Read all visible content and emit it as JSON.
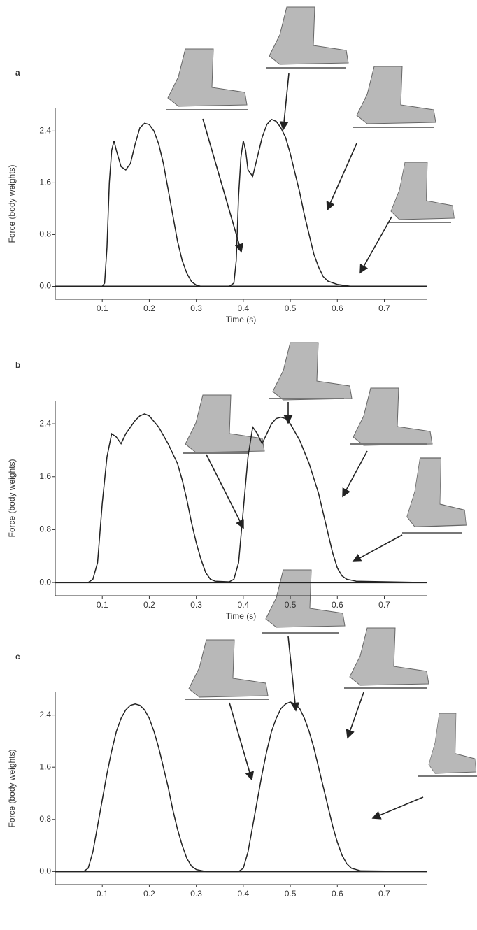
{
  "chart_data": [
    {
      "type": "line",
      "title": "a",
      "xlabel": "Time (s)",
      "ylabel": "Force (body weights)",
      "x": [
        0,
        0.1,
        0.105,
        0.11,
        0.115,
        0.12,
        0.125,
        0.13,
        0.14,
        0.15,
        0.16,
        0.17,
        0.18,
        0.19,
        0.2,
        0.21,
        0.22,
        0.23,
        0.24,
        0.25,
        0.26,
        0.27,
        0.28,
        0.29,
        0.3,
        0.31,
        0.37,
        0.38,
        0.385,
        0.39,
        0.395,
        0.4,
        0.405,
        0.41,
        0.42,
        0.43,
        0.44,
        0.45,
        0.46,
        0.47,
        0.48,
        0.49,
        0.5,
        0.51,
        0.52,
        0.53,
        0.54,
        0.55,
        0.56,
        0.57,
        0.58,
        0.6,
        0.63,
        0.79
      ],
      "series": [
        {
          "color": "#222222",
          "values": [
            0,
            0,
            0.05,
            0.6,
            1.6,
            2.1,
            2.25,
            2.1,
            1.85,
            1.8,
            1.9,
            2.2,
            2.45,
            2.52,
            2.5,
            2.4,
            2.2,
            1.9,
            1.5,
            1.1,
            0.7,
            0.4,
            0.2,
            0.07,
            0.02,
            0,
            0,
            0.05,
            0.4,
            1.4,
            2.0,
            2.25,
            2.1,
            1.8,
            1.7,
            2.0,
            2.3,
            2.5,
            2.58,
            2.55,
            2.45,
            2.3,
            2.05,
            1.75,
            1.45,
            1.1,
            0.8,
            0.5,
            0.3,
            0.15,
            0.08,
            0.03,
            0,
            0
          ]
        }
      ],
      "xlim": [
        0,
        0.79
      ],
      "ylim": [
        -0.2,
        2.75
      ],
      "xticks": [
        0.1,
        0.2,
        0.3,
        0.4,
        0.5,
        0.6,
        0.7
      ],
      "yticks": [
        {
          "value": 0,
          "label": "0.0"
        },
        0.8,
        1.6,
        2.4
      ]
    },
    {
      "type": "line",
      "title": "b",
      "xlabel": "Time (s)",
      "ylabel": "Force (body weights)",
      "x": [
        0,
        0.07,
        0.08,
        0.09,
        0.1,
        0.11,
        0.12,
        0.13,
        0.14,
        0.15,
        0.16,
        0.17,
        0.18,
        0.19,
        0.2,
        0.22,
        0.24,
        0.26,
        0.27,
        0.28,
        0.29,
        0.3,
        0.31,
        0.32,
        0.33,
        0.34,
        0.37,
        0.38,
        0.39,
        0.4,
        0.41,
        0.42,
        0.43,
        0.44,
        0.45,
        0.46,
        0.47,
        0.48,
        0.49,
        0.5,
        0.52,
        0.54,
        0.56,
        0.57,
        0.58,
        0.59,
        0.6,
        0.61,
        0.62,
        0.64,
        0.79
      ],
      "series": [
        {
          "color": "#222222",
          "values": [
            0,
            0,
            0.05,
            0.3,
            1.2,
            1.9,
            2.25,
            2.2,
            2.1,
            2.25,
            2.35,
            2.45,
            2.52,
            2.55,
            2.52,
            2.35,
            2.1,
            1.8,
            1.55,
            1.25,
            0.9,
            0.6,
            0.35,
            0.15,
            0.05,
            0.02,
            0.01,
            0.05,
            0.3,
            1.1,
            1.9,
            2.35,
            2.25,
            2.1,
            2.25,
            2.4,
            2.48,
            2.5,
            2.48,
            2.4,
            2.15,
            1.8,
            1.35,
            1.05,
            0.75,
            0.45,
            0.22,
            0.1,
            0.05,
            0.02,
            0
          ]
        }
      ],
      "xlim": [
        0,
        0.79
      ],
      "ylim": [
        -0.2,
        2.75
      ],
      "xticks": [
        0.1,
        0.2,
        0.3,
        0.4,
        0.5,
        0.6,
        0.7
      ],
      "yticks": [
        {
          "value": 0,
          "label": "0.0"
        },
        0.8,
        1.6,
        2.4
      ]
    },
    {
      "type": "line",
      "title": "c",
      "ylabel": "Force (body weights)",
      "x": [
        0,
        0.06,
        0.07,
        0.08,
        0.09,
        0.1,
        0.11,
        0.12,
        0.13,
        0.14,
        0.15,
        0.16,
        0.17,
        0.18,
        0.19,
        0.2,
        0.21,
        0.22,
        0.23,
        0.24,
        0.25,
        0.26,
        0.27,
        0.28,
        0.29,
        0.3,
        0.32,
        0.39,
        0.4,
        0.41,
        0.42,
        0.43,
        0.44,
        0.45,
        0.46,
        0.47,
        0.48,
        0.49,
        0.5,
        0.51,
        0.52,
        0.53,
        0.54,
        0.55,
        0.56,
        0.57,
        0.58,
        0.59,
        0.6,
        0.61,
        0.62,
        0.63,
        0.65,
        0.79
      ],
      "series": [
        {
          "color": "#222222",
          "values": [
            0,
            0,
            0.05,
            0.3,
            0.7,
            1.1,
            1.5,
            1.85,
            2.15,
            2.35,
            2.48,
            2.55,
            2.57,
            2.55,
            2.48,
            2.35,
            2.15,
            1.9,
            1.6,
            1.3,
            0.95,
            0.65,
            0.4,
            0.2,
            0.08,
            0.03,
            0,
            0,
            0.05,
            0.3,
            0.7,
            1.1,
            1.5,
            1.85,
            2.15,
            2.35,
            2.5,
            2.57,
            2.6,
            2.57,
            2.5,
            2.35,
            2.15,
            1.9,
            1.6,
            1.3,
            1.0,
            0.7,
            0.45,
            0.25,
            0.12,
            0.05,
            0.01,
            0
          ]
        }
      ],
      "xlim": [
        0,
        0.79
      ],
      "ylim": [
        -0.2,
        2.75
      ],
      "xticks": [
        0.1,
        0.2,
        0.3,
        0.4,
        0.5,
        0.6,
        0.7
      ],
      "yticks": [
        {
          "value": 0,
          "label": "0.0"
        },
        0.8,
        1.6,
        2.4
      ]
    }
  ]
}
